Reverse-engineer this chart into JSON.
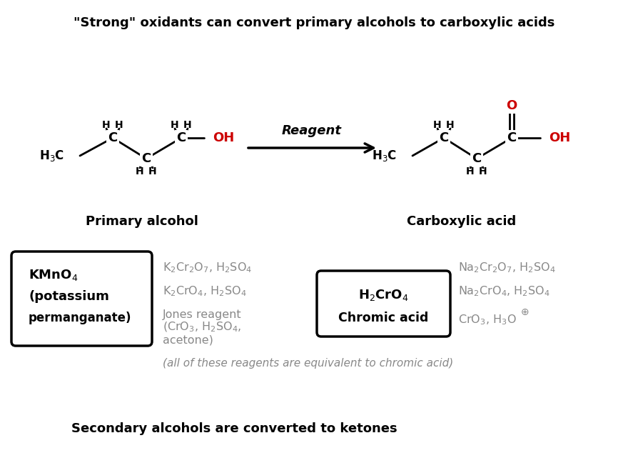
{
  "title": "\"Strong\" oxidants can convert primary alcohols to carboxylic acids",
  "bottom_text": "Secondary alcohols are converted to ketones",
  "reagent_label": "Reagent",
  "primary_alcohol_label": "Primary alcohol",
  "carboxylic_acid_label": "Carboxylic acid",
  "equiv_text": "(all of these reagents are equivalent to chromic acid)",
  "bg_color": "#ffffff",
  "black": "#000000",
  "red": "#cc0000",
  "dark_gray": "#888888",
  "fig_width": 8.8,
  "fig_height": 6.62,
  "dpi": 100
}
